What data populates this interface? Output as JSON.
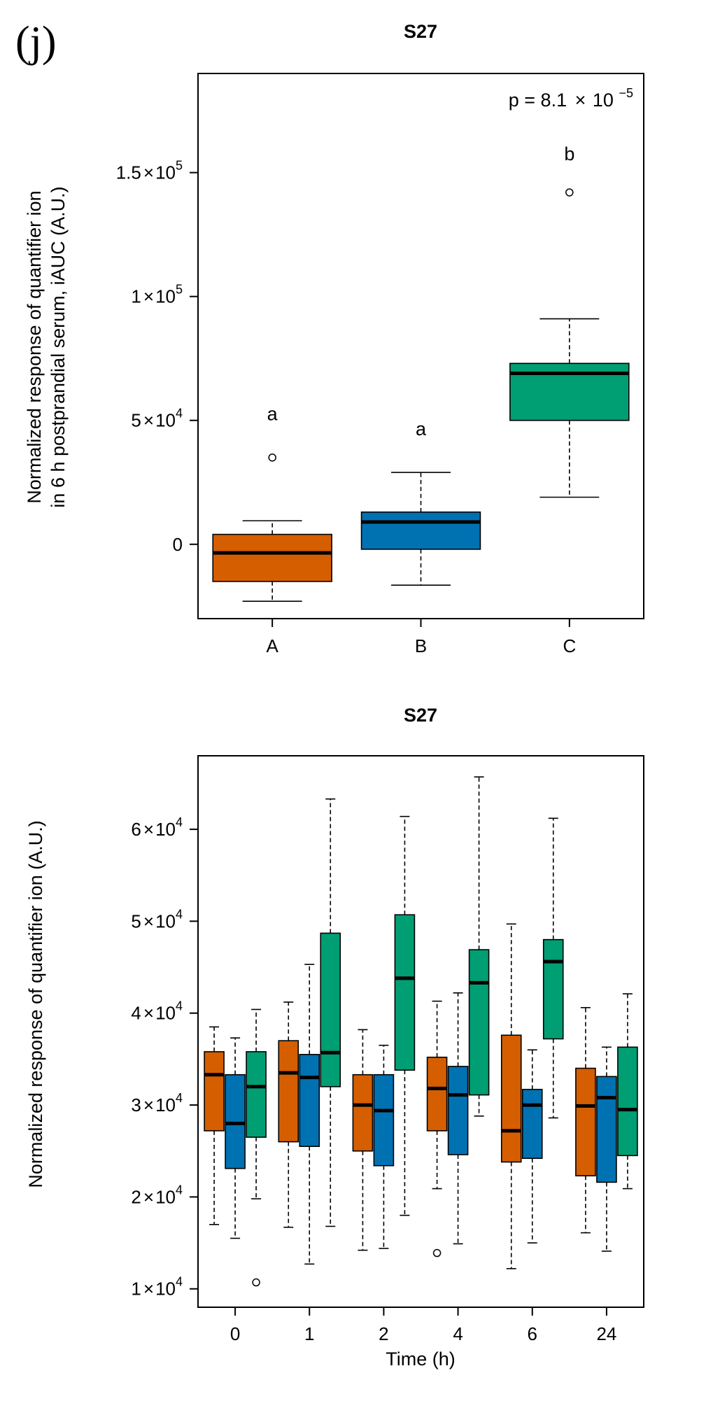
{
  "chart_data": [
    {
      "type": "box",
      "panel_label": "(j)",
      "title": "S27",
      "ylabel_lines": [
        "Normalized response of quantifier ion",
        "in 6 h postprandial serum, iAUC (A.U.)"
      ],
      "xlabel": "",
      "ylim": [
        -30000,
        190000
      ],
      "y_ticks": [
        {
          "value": 0,
          "mant": "0",
          "exp": ""
        },
        {
          "value": 50000,
          "mant": "5",
          "exp": "4"
        },
        {
          "value": 100000,
          "mant": "1",
          "exp": "5"
        },
        {
          "value": 150000,
          "mant": "1.5",
          "exp": "5"
        }
      ],
      "times_sign": "×",
      "annotation": {
        "prefix": "p = 8.1",
        "base": "10",
        "exp": "−5"
      },
      "groups": [
        {
          "label": "A",
          "color": "#d55e00",
          "whisker_low": -23000,
          "q1": -15000,
          "median": -3500,
          "q3": 4000,
          "whisker_high": 9500,
          "outliers": [
            35000
          ],
          "letter": "a",
          "letter_y": 50000
        },
        {
          "label": "B",
          "color": "#0072b2",
          "whisker_low": -16500,
          "q1": -2000,
          "median": 9000,
          "q3": 13000,
          "whisker_high": 29000,
          "outliers": [],
          "letter": "a",
          "letter_y": 44000
        },
        {
          "label": "C",
          "color": "#009e73",
          "whisker_low": 19000,
          "q1": 50000,
          "median": 69000,
          "q3": 73000,
          "whisker_high": 91000,
          "outliers": [
            142000
          ],
          "letter": "b",
          "letter_y": 155000
        }
      ]
    },
    {
      "type": "box",
      "title": "S27",
      "ylabel": "Normalized response of quantifier ion (A.U.)",
      "xlabel": "Time (h)",
      "ylim": [
        8000,
        68000
      ],
      "y_ticks": [
        {
          "value": 10000,
          "mant": "1",
          "exp": "4"
        },
        {
          "value": 20000,
          "mant": "2",
          "exp": "4"
        },
        {
          "value": 30000,
          "mant": "3",
          "exp": "4"
        },
        {
          "value": 40000,
          "mant": "4",
          "exp": "4"
        },
        {
          "value": 50000,
          "mant": "5",
          "exp": "4"
        },
        {
          "value": 60000,
          "mant": "6",
          "exp": "4"
        }
      ],
      "times_sign": "×",
      "group_colors": [
        "#d55e00",
        "#0072b2",
        "#009e73"
      ],
      "categories": [
        "0",
        "1",
        "2",
        "4",
        "6",
        "24"
      ],
      "boxes": [
        [
          {
            "whisker_low": 17000,
            "q1": 27200,
            "median": 33300,
            "q3": 35800,
            "whisker_high": 38500,
            "outliers": []
          },
          {
            "whisker_low": 15500,
            "q1": 23100,
            "median": 28000,
            "q3": 33300,
            "whisker_high": 37300,
            "outliers": []
          },
          {
            "whisker_low": 19800,
            "q1": 26500,
            "median": 32000,
            "q3": 35800,
            "whisker_high": 40400,
            "outliers": [
              10700
            ]
          }
        ],
        [
          {
            "whisker_low": 16700,
            "q1": 26000,
            "median": 33500,
            "q3": 37000,
            "whisker_high": 41200,
            "outliers": []
          },
          {
            "whisker_low": 12700,
            "q1": 25500,
            "median": 33000,
            "q3": 35500,
            "whisker_high": 45300,
            "outliers": []
          },
          {
            "whisker_low": 16800,
            "q1": 32000,
            "median": 35700,
            "q3": 48700,
            "whisker_high": 63300,
            "outliers": []
          }
        ],
        [
          {
            "whisker_low": 14200,
            "q1": 25000,
            "median": 30000,
            "q3": 33300,
            "whisker_high": 38200,
            "outliers": []
          },
          {
            "whisker_low": 14400,
            "q1": 23400,
            "median": 29400,
            "q3": 33300,
            "whisker_high": 36500,
            "outliers": []
          },
          {
            "whisker_low": 18000,
            "q1": 33800,
            "median": 43800,
            "q3": 50700,
            "whisker_high": 61400,
            "outliers": []
          }
        ],
        [
          {
            "whisker_low": 20900,
            "q1": 27200,
            "median": 31800,
            "q3": 35200,
            "whisker_high": 41300,
            "outliers": [
              13900
            ]
          },
          {
            "whisker_low": 14900,
            "q1": 24600,
            "median": 31100,
            "q3": 34200,
            "whisker_high": 42200,
            "outliers": []
          },
          {
            "whisker_low": 28800,
            "q1": 31100,
            "median": 43300,
            "q3": 46900,
            "whisker_high": 65700,
            "outliers": []
          }
        ],
        [
          {
            "whisker_low": 12200,
            "q1": 23800,
            "median": 27200,
            "q3": 37600,
            "whisker_high": 49700,
            "outliers": []
          },
          {
            "whisker_low": 15000,
            "q1": 24200,
            "median": 30000,
            "q3": 31700,
            "whisker_high": 36000,
            "outliers": []
          },
          {
            "whisker_low": 28600,
            "q1": 37200,
            "median": 45600,
            "q3": 48000,
            "whisker_high": 61200,
            "outliers": []
          }
        ],
        [
          {
            "whisker_low": 16100,
            "q1": 22300,
            "median": 29900,
            "q3": 34000,
            "whisker_high": 40600,
            "outliers": []
          },
          {
            "whisker_low": 14100,
            "q1": 21600,
            "median": 30800,
            "q3": 33100,
            "whisker_high": 36300,
            "outliers": []
          },
          {
            "whisker_low": 20900,
            "q1": 24500,
            "median": 29500,
            "q3": 36300,
            "whisker_high": 42100,
            "outliers": []
          }
        ]
      ]
    }
  ]
}
